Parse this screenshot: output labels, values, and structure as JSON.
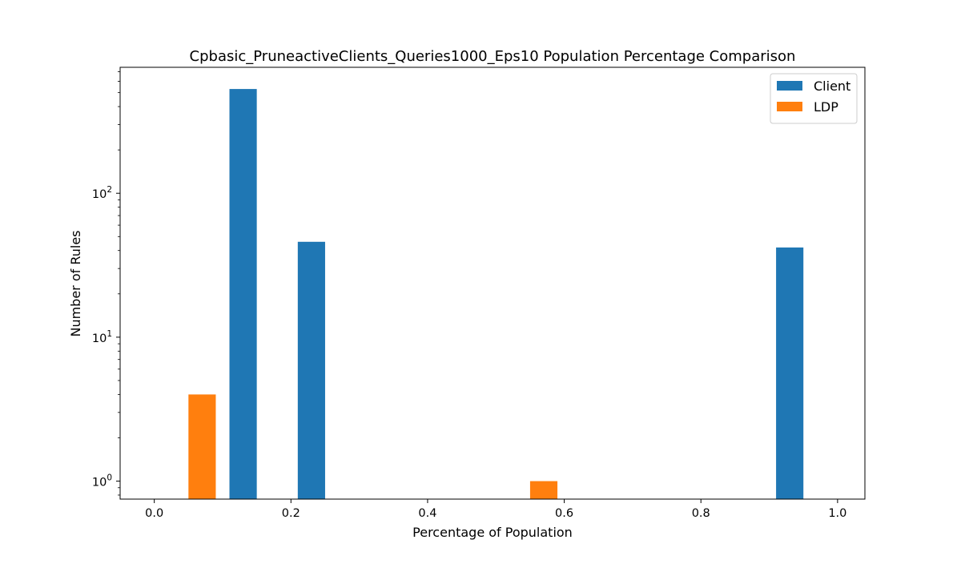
{
  "chart_data": {
    "type": "bar",
    "title": "Cpbasic_PruneactiveClients_Queries1000_Eps10 Population Percentage Comparison",
    "xlabel": "Percentage of Population",
    "ylabel": "Number of Rules",
    "yscale": "log",
    "xlim": [
      -0.05,
      1.04
    ],
    "ylim": [
      0.75,
      750
    ],
    "xticks": [
      {
        "value": 0.0,
        "label": "0.0"
      },
      {
        "value": 0.2,
        "label": "0.2"
      },
      {
        "value": 0.4,
        "label": "0.4"
      },
      {
        "value": 0.6,
        "label": "0.6"
      },
      {
        "value": 0.8,
        "label": "0.8"
      },
      {
        "value": 1.0,
        "label": "1.0"
      }
    ],
    "yticks": [
      {
        "value": 1,
        "base": "10",
        "exp": "0"
      },
      {
        "value": 10,
        "base": "10",
        "exp": "1"
      },
      {
        "value": 100,
        "base": "10",
        "exp": "2"
      }
    ],
    "bar_width": 0.04,
    "series": [
      {
        "name": "Client",
        "color": "#1f77b4",
        "points": [
          {
            "x": 0.13,
            "y": 530
          },
          {
            "x": 0.23,
            "y": 46
          },
          {
            "x": 0.93,
            "y": 42
          }
        ]
      },
      {
        "name": "LDP",
        "color": "#ff7f0e",
        "points": [
          {
            "x": 0.07,
            "y": 4
          },
          {
            "x": 0.57,
            "y": 1
          }
        ]
      }
    ],
    "legend": {
      "position": "top-right"
    },
    "grid": false
  }
}
